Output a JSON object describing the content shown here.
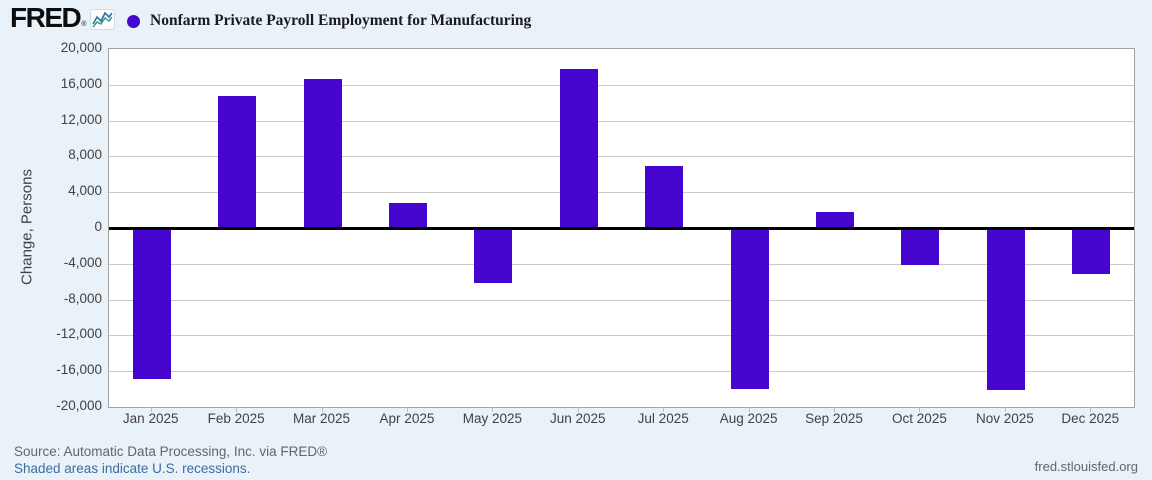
{
  "header": {
    "logo_text": "FRED",
    "logo_reg": "®",
    "series_title": "Nonfarm Private Payroll Employment for Manufacturing"
  },
  "footer": {
    "source": "Source: Automatic Data Processing, Inc. via FRED®",
    "recessions_note": "Shaded areas indicate U.S. recessions.",
    "site": "fred.stlouisfed.org"
  },
  "colors": {
    "background": "#e9f1f9",
    "bar": "#4506cd",
    "legend_dot": "#4506cd",
    "plot_background": "#ffffff",
    "gridline": "#cbcbcb",
    "zero_line": "#000000",
    "link": "#3c6ea0",
    "muted_text": "#666666"
  },
  "chart_data": {
    "type": "bar",
    "title": "Nonfarm Private Payroll Employment for Manufacturing",
    "xlabel": "",
    "ylabel": "Change, Persons",
    "ylim": [
      -20000,
      20000
    ],
    "ytick_step": 4000,
    "yticks": [
      20000,
      16000,
      12000,
      8000,
      4000,
      0,
      -4000,
      -8000,
      -12000,
      -16000,
      -20000
    ],
    "grid": true,
    "legend_position": "top",
    "categories": [
      "Jan 2025",
      "Feb 2025",
      "Mar 2025",
      "Apr 2025",
      "May 2025",
      "Jun 2025",
      "Jul 2025",
      "Aug 2025",
      "Sep 2025",
      "Oct 2025",
      "Nov 2025",
      "Dec 2025"
    ],
    "values": [
      -16900,
      14800,
      16700,
      2800,
      -6100,
      17800,
      6900,
      -18000,
      1800,
      -4100,
      -18100,
      -5100
    ]
  }
}
